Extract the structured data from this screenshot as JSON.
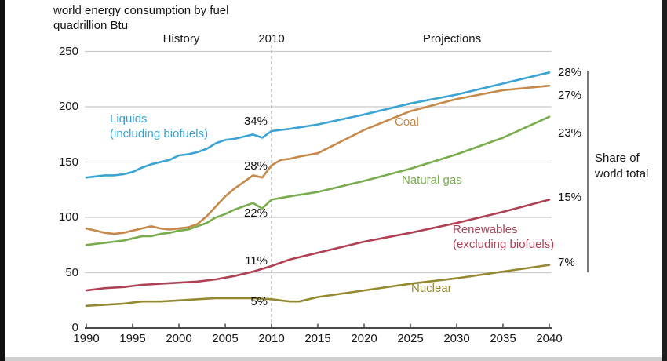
{
  "title": {
    "line1": "world energy consumption by fuel",
    "line2": "quadrillion Btu"
  },
  "header": {
    "history": "History",
    "divider_year": "2010",
    "projections": "Projections"
  },
  "right_bracket": {
    "label_line1": "Share of",
    "label_line2": "world total"
  },
  "chart_data": {
    "type": "line",
    "title": "world energy consumption by fuel",
    "ylabel": "quadrillion Btu",
    "xlim": [
      1990,
      2040
    ],
    "ylim": [
      0,
      250
    ],
    "x_ticks": [
      1990,
      1995,
      2000,
      2005,
      2010,
      2015,
      2020,
      2025,
      2030,
      2035,
      2040
    ],
    "y_ticks": [
      0,
      50,
      100,
      150,
      200,
      250
    ],
    "grid": "horizontal",
    "history_projection_divider": 2010,
    "divider_style": "dashed",
    "colors": {
      "grid": "#cbcbcb",
      "axis": "#4a4a4a",
      "divider": "#b3b3b3",
      "bracket": "#5a5a5a"
    },
    "series": [
      {
        "name": "Liquids (including biofuels)",
        "label_line1": "Liquids",
        "label_line2": "(including biofuels)",
        "color": "#3aa3d1",
        "share_2010": "34%",
        "share_2040": "28%",
        "points": [
          [
            1990,
            136
          ],
          [
            1991,
            137
          ],
          [
            1992,
            138
          ],
          [
            1993,
            138
          ],
          [
            1994,
            139
          ],
          [
            1995,
            141
          ],
          [
            1996,
            145
          ],
          [
            1997,
            148
          ],
          [
            1998,
            150
          ],
          [
            1999,
            152
          ],
          [
            2000,
            156
          ],
          [
            2001,
            157
          ],
          [
            2002,
            159
          ],
          [
            2003,
            162
          ],
          [
            2004,
            167
          ],
          [
            2005,
            170
          ],
          [
            2006,
            171
          ],
          [
            2007,
            173
          ],
          [
            2008,
            175
          ],
          [
            2009,
            172
          ],
          [
            2010,
            178
          ],
          [
            2012,
            180
          ],
          [
            2015,
            184
          ],
          [
            2020,
            193
          ],
          [
            2025,
            203
          ],
          [
            2030,
            211
          ],
          [
            2035,
            221
          ],
          [
            2040,
            231
          ]
        ]
      },
      {
        "name": "Coal",
        "label_line1": "Coal",
        "label_line2": "",
        "color": "#c5894a",
        "share_2010": "28%",
        "share_2040": "27%",
        "points": [
          [
            1990,
            90
          ],
          [
            1991,
            88
          ],
          [
            1992,
            86
          ],
          [
            1993,
            85
          ],
          [
            1994,
            86
          ],
          [
            1995,
            88
          ],
          [
            1996,
            90
          ],
          [
            1997,
            92
          ],
          [
            1998,
            90
          ],
          [
            1999,
            89
          ],
          [
            2000,
            90
          ],
          [
            2001,
            91
          ],
          [
            2002,
            94
          ],
          [
            2003,
            101
          ],
          [
            2004,
            110
          ],
          [
            2005,
            119
          ],
          [
            2006,
            126
          ],
          [
            2007,
            132
          ],
          [
            2008,
            138
          ],
          [
            2009,
            136
          ],
          [
            2010,
            147
          ],
          [
            2011,
            152
          ],
          [
            2012,
            153
          ],
          [
            2013,
            155
          ],
          [
            2015,
            158
          ],
          [
            2020,
            179
          ],
          [
            2025,
            196
          ],
          [
            2030,
            207
          ],
          [
            2035,
            215
          ],
          [
            2040,
            219
          ]
        ]
      },
      {
        "name": "Natural gas",
        "label_line1": "Natural gas",
        "label_line2": "",
        "color": "#79ac4c",
        "share_2010": "22%",
        "share_2040": "23%",
        "points": [
          [
            1990,
            75
          ],
          [
            1991,
            76
          ],
          [
            1992,
            77
          ],
          [
            1993,
            78
          ],
          [
            1994,
            79
          ],
          [
            1995,
            81
          ],
          [
            1996,
            83
          ],
          [
            1997,
            83
          ],
          [
            1998,
            85
          ],
          [
            1999,
            86
          ],
          [
            2000,
            88
          ],
          [
            2001,
            89
          ],
          [
            2002,
            92
          ],
          [
            2003,
            95
          ],
          [
            2004,
            100
          ],
          [
            2005,
            103
          ],
          [
            2006,
            107
          ],
          [
            2007,
            110
          ],
          [
            2008,
            113
          ],
          [
            2009,
            108
          ],
          [
            2010,
            116
          ],
          [
            2012,
            119
          ],
          [
            2015,
            123
          ],
          [
            2020,
            133
          ],
          [
            2025,
            144
          ],
          [
            2030,
            157
          ],
          [
            2035,
            172
          ],
          [
            2040,
            191
          ]
        ]
      },
      {
        "name": "Renewables (excluding biofuels)",
        "label_line1": "Renewables",
        "label_line2": "(excluding biofuels)",
        "color": "#ae4154",
        "share_2010": "11%",
        "share_2040": "15%",
        "points": [
          [
            1990,
            34
          ],
          [
            1992,
            36
          ],
          [
            1994,
            37
          ],
          [
            1996,
            39
          ],
          [
            1998,
            40
          ],
          [
            2000,
            41
          ],
          [
            2002,
            42
          ],
          [
            2004,
            44
          ],
          [
            2006,
            47
          ],
          [
            2008,
            51
          ],
          [
            2010,
            56
          ],
          [
            2012,
            62
          ],
          [
            2015,
            68
          ],
          [
            2020,
            78
          ],
          [
            2025,
            86
          ],
          [
            2030,
            95
          ],
          [
            2035,
            105
          ],
          [
            2040,
            116
          ]
        ]
      },
      {
        "name": "Nuclear",
        "label_line1": "Nuclear",
        "label_line2": "",
        "color": "#94892f",
        "share_2010": "5%",
        "share_2040": "7%",
        "points": [
          [
            1990,
            20
          ],
          [
            1992,
            21
          ],
          [
            1994,
            22
          ],
          [
            1996,
            24
          ],
          [
            1998,
            24
          ],
          [
            2000,
            25
          ],
          [
            2002,
            26
          ],
          [
            2004,
            27
          ],
          [
            2006,
            27
          ],
          [
            2008,
            27
          ],
          [
            2010,
            26
          ],
          [
            2011,
            25
          ],
          [
            2012,
            24
          ],
          [
            2013,
            24
          ],
          [
            2015,
            28
          ],
          [
            2020,
            34
          ],
          [
            2025,
            40
          ],
          [
            2030,
            45
          ],
          [
            2035,
            51
          ],
          [
            2040,
            57
          ]
        ]
      }
    ],
    "right_axis_note": "Share of world total"
  }
}
